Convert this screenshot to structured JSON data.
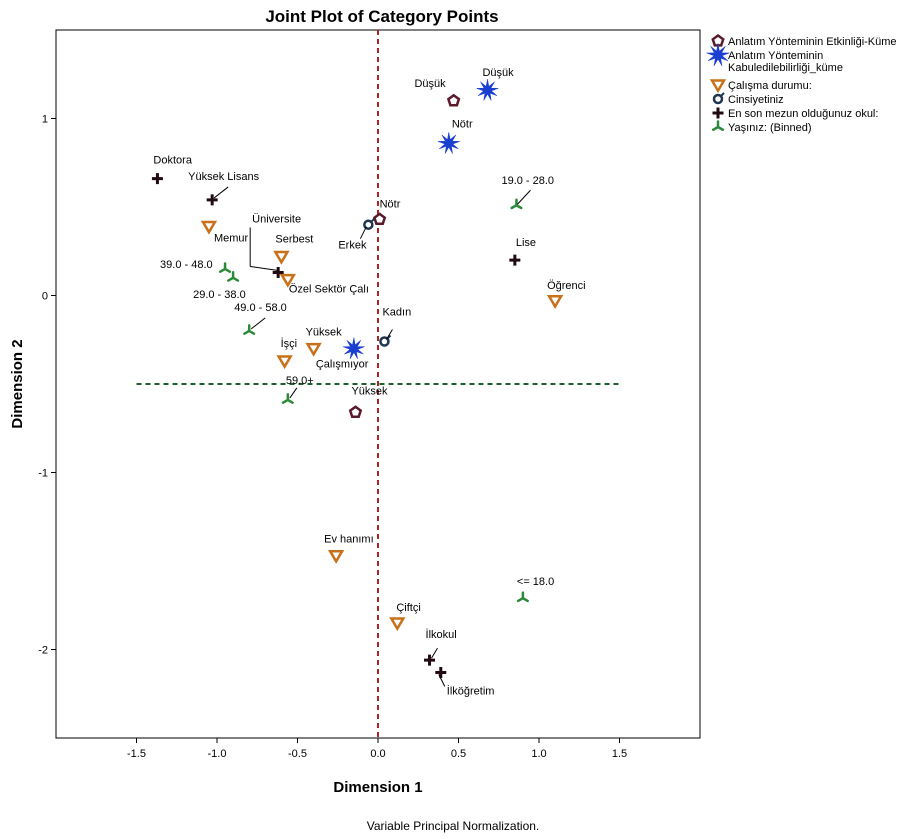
{
  "chart_data": {
    "type": "scatter",
    "title": "Joint Plot of Category Points",
    "xlabel": "Dimension 1",
    "ylabel": "Dimension 2",
    "xlim": [
      -2.0,
      2.0
    ],
    "ylim": [
      -2.5,
      1.5
    ],
    "xticks": [
      -1.5,
      -1.0,
      -0.5,
      0.0,
      0.5,
      1.0,
      1.5
    ],
    "yticks": [
      -2,
      -1,
      0,
      1
    ],
    "xtick_labels": [
      "-1.5",
      "-1.0",
      "-0.5",
      "0.0",
      "0.5",
      "1.0",
      "1.5"
    ],
    "ytick_labels": [
      "-2",
      "-1",
      "0",
      "1"
    ],
    "footnote": "Variable Principal Normalization.",
    "reference_lines": [
      {
        "orientation": "vertical",
        "value": 0.0,
        "color": "#b22222",
        "style": "dashed"
      },
      {
        "orientation": "horizontal",
        "value": -0.5,
        "color": "#1f5f2f",
        "style": "dashed",
        "from": -1.5,
        "to": 1.5
      }
    ],
    "series": [
      {
        "name": "Anlatım Yönteminin Etkinliği-Küme",
        "marker": "pentagon",
        "color": "#5a1a2a",
        "points": [
          {
            "label": "Düşük",
            "x": 0.47,
            "y": 1.1
          },
          {
            "label": "Nötr",
            "x": 0.01,
            "y": 0.43
          },
          {
            "label": "Yüksek",
            "x": -0.14,
            "y": -0.66
          }
        ]
      },
      {
        "name": "Anlatım Yönteminin Kabuledilebilirliği_küme",
        "marker": "star",
        "color": "#1a3fd0",
        "points": [
          {
            "label": "Düşük",
            "x": 0.68,
            "y": 1.16
          },
          {
            "label": "Nötr",
            "x": 0.44,
            "y": 0.86
          },
          {
            "label": "Çalışmıyor",
            "x": -0.15,
            "y": -0.3
          }
        ]
      },
      {
        "name": "Çalışma durumu:",
        "marker": "triangle-down",
        "color": "#c8701a",
        "points": [
          {
            "label": "Memur",
            "x": -1.05,
            "y": 0.39
          },
          {
            "label": "Serbest",
            "x": -0.6,
            "y": 0.22
          },
          {
            "label": "Özel Sektör Çalı",
            "x": -0.56,
            "y": 0.09
          },
          {
            "label": "Öğrenci",
            "x": 1.1,
            "y": -0.03
          },
          {
            "label": "İşçi",
            "x": -0.58,
            "y": -0.37
          },
          {
            "label": "Yüksek",
            "x": -0.4,
            "y": -0.3
          },
          {
            "label": "Ev hanımı",
            "x": -0.26,
            "y": -1.47
          },
          {
            "label": "Çiftçi",
            "x": 0.12,
            "y": -1.85
          }
        ]
      },
      {
        "name": "Cinsiyetiniz",
        "marker": "ring",
        "color": "#1f3550",
        "points": [
          {
            "label": "Erkek",
            "x": -0.06,
            "y": 0.4
          },
          {
            "label": "Kadın",
            "x": 0.04,
            "y": -0.26
          }
        ]
      },
      {
        "name": "En son mezun olduğunuz okul:",
        "marker": "plus",
        "color": "#220a14",
        "points": [
          {
            "label": "Doktora",
            "x": -1.37,
            "y": 0.66
          },
          {
            "label": "Yüksek Lisans",
            "x": -1.03,
            "y": 0.54
          },
          {
            "label": "Üniversite",
            "x": -0.62,
            "y": 0.13
          },
          {
            "label": "Lise",
            "x": 0.85,
            "y": 0.2
          },
          {
            "label": "İlkokul",
            "x": 0.32,
            "y": -2.06
          },
          {
            "label": "İlköğretim",
            "x": 0.39,
            "y": -2.13
          }
        ]
      },
      {
        "name": "Yaşınız:  (Binned)",
        "marker": "tri",
        "color": "#2a8a3a",
        "points": [
          {
            "label": "19.0 - 28.0",
            "x": 0.86,
            "y": 0.51
          },
          {
            "label": "39.0 - 48.0",
            "x": -0.95,
            "y": 0.15
          },
          {
            "label": "29.0 - 38.0",
            "x": -0.9,
            "y": 0.1
          },
          {
            "label": "49.0 - 58.0",
            "x": -0.8,
            "y": -0.2
          },
          {
            "label": "59.0+",
            "x": -0.56,
            "y": -0.59
          },
          {
            "label": "<= 18.0",
            "x": 0.9,
            "y": -1.71
          }
        ]
      }
    ],
    "legend": {
      "placement": "right",
      "entries": [
        {
          "text": "Anlatım Yönteminin Etkinliği-Küme",
          "marker": "pentagon",
          "color": "#5a1a2a"
        },
        {
          "text": "Anlatım Yönteminin",
          "text2": "Kabuledilebilirliği_küme",
          "marker": "star",
          "color": "#1a3fd0"
        },
        {
          "text": "Çalışma durumu:",
          "marker": "triangle-down",
          "color": "#c8701a"
        },
        {
          "text": "Cinsiyetiniz",
          "marker": "ring",
          "color": "#1f3550"
        },
        {
          "text": "En son mezun olduğunuz okul:",
          "marker": "plus",
          "color": "#220a14"
        },
        {
          "text": "Yaşınız:  (Binned)",
          "marker": "tri",
          "color": "#2a8a3a"
        }
      ]
    }
  }
}
